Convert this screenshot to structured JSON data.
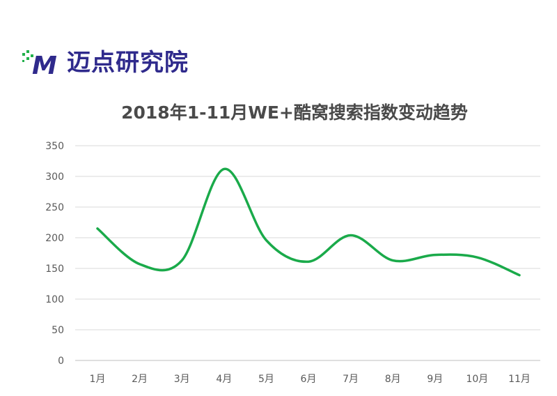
{
  "logo": {
    "text": "迈点研究院",
    "mark_letter": "M",
    "brand_color": "#2f2a8c",
    "accent_color": "#22b04b"
  },
  "chart_data": {
    "type": "line",
    "title": "2018年1-11月WE+酷窝搜索指数变动趋势",
    "xlabel": "",
    "ylabel": "",
    "categories": [
      "1月",
      "2月",
      "3月",
      "4月",
      "5月",
      "6月",
      "7月",
      "8月",
      "9月",
      "10月",
      "11月"
    ],
    "series": [
      {
        "values": [
          215,
          157,
          163,
          312,
          196,
          161,
          204,
          163,
          172,
          168,
          139
        ],
        "color": "#1aaa4a"
      }
    ],
    "ylim": [
      0,
      350
    ],
    "yticks": [
      0,
      50,
      100,
      150,
      200,
      250,
      300,
      350
    ],
    "grid": true,
    "smooth": true,
    "legend": "none"
  }
}
